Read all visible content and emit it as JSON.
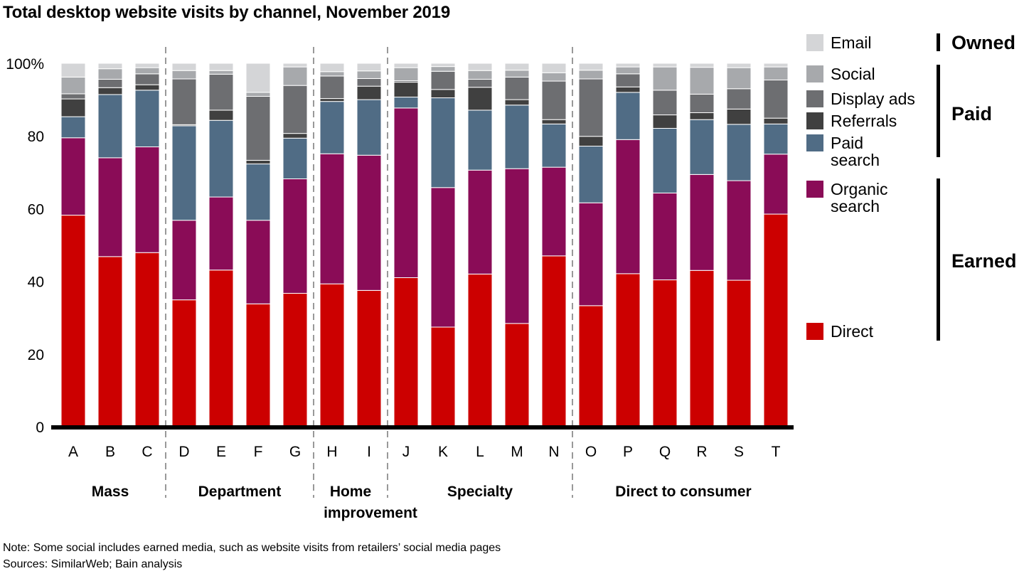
{
  "chart_data": {
    "type": "bar",
    "stacked": true,
    "title": "Total desktop website visits by channel, November 2019",
    "xlabel": "",
    "ylabel": "",
    "ylim": [
      0,
      100
    ],
    "yticks": [
      {
        "value": 0,
        "label": "0"
      },
      {
        "value": 20,
        "label": "20"
      },
      {
        "value": 40,
        "label": "40"
      },
      {
        "value": 60,
        "label": "60"
      },
      {
        "value": 80,
        "label": "80"
      },
      {
        "value": 100,
        "label": "100%"
      }
    ],
    "categories": [
      "A",
      "B",
      "C",
      "D",
      "E",
      "F",
      "G",
      "H",
      "I",
      "J",
      "K",
      "L",
      "M",
      "N",
      "O",
      "P",
      "Q",
      "R",
      "S",
      "T"
    ],
    "category_groups": [
      {
        "name": "Mass",
        "members": [
          "A",
          "B",
          "C"
        ]
      },
      {
        "name": "Department",
        "members": [
          "D",
          "E",
          "F",
          "G"
        ]
      },
      {
        "name": "Home improvement",
        "members": [
          "H",
          "I"
        ]
      },
      {
        "name": "Specialty",
        "members": [
          "J",
          "K",
          "L",
          "M",
          "N"
        ]
      },
      {
        "name": "Direct to consumer",
        "members": [
          "O",
          "P",
          "Q",
          "R",
          "S",
          "T"
        ]
      }
    ],
    "series": [
      {
        "name": "Direct",
        "color": "#cc0000",
        "values": [
          58.2,
          46.8,
          47.9,
          34.9,
          43.1,
          33.8,
          36.7,
          39.3,
          37.5,
          41.0,
          27.4,
          42.0,
          28.4,
          47.0,
          33.3,
          42.1,
          40.4,
          43.0,
          40.3,
          58.5
        ]
      },
      {
        "name": "Organic search",
        "color": "#8a0c57",
        "values": [
          21.3,
          27.2,
          29.1,
          21.9,
          20.1,
          23.0,
          31.5,
          35.8,
          37.2,
          46.7,
          38.4,
          28.6,
          42.6,
          24.4,
          28.3,
          36.9,
          23.9,
          26.4,
          27.4,
          16.5
        ]
      },
      {
        "name": "Paid search",
        "color": "#506c85",
        "values": [
          5.8,
          17.4,
          15.6,
          26.0,
          21.1,
          15.5,
          11.2,
          14.4,
          15.3,
          3.0,
          24.7,
          16.5,
          17.5,
          11.9,
          15.6,
          13.0,
          17.8,
          15.1,
          15.5,
          8.3
        ]
      },
      {
        "name": "Referrals",
        "color": "#404040",
        "values": [
          4.9,
          1.9,
          1.5,
          0.3,
          2.8,
          1.0,
          1.3,
          0.8,
          3.7,
          4.1,
          2.3,
          6.3,
          1.5,
          1.2,
          2.7,
          1.5,
          3.7,
          1.9,
          4.2,
          1.6
        ]
      },
      {
        "name": "Display ads",
        "color": "#6d6e71",
        "values": [
          1.4,
          2.3,
          3.0,
          12.6,
          9.9,
          17.6,
          13.2,
          6.2,
          2.1,
          0.4,
          5.0,
          2.2,
          6.2,
          10.6,
          15.8,
          3.6,
          6.8,
          5.1,
          5.6,
          10.5
        ]
      },
      {
        "name": "Social",
        "color": "#a7a9ac",
        "values": [
          4.6,
          2.9,
          1.7,
          2.3,
          1.0,
          1.1,
          5.1,
          1.2,
          2.1,
          3.6,
          1.3,
          2.4,
          1.9,
          2.3,
          2.4,
          1.9,
          6.4,
          7.4,
          5.8,
          3.6
        ]
      },
      {
        "name": "Email",
        "color": "#d4d5d7",
        "values": [
          3.8,
          1.5,
          1.2,
          2.0,
          2.0,
          8.0,
          1.0,
          2.3,
          2.1,
          1.2,
          0.9,
          2.0,
          1.9,
          2.6,
          1.9,
          1.0,
          1.0,
          1.1,
          1.2,
          1.0
        ]
      }
    ],
    "legend": {
      "placement": "right",
      "order": [
        {
          "label": "Email",
          "series": "Email"
        },
        {
          "label": "Social",
          "series": "Social"
        },
        {
          "label": "Display ads",
          "series": "Display ads"
        },
        {
          "label": "Referrals",
          "series": "Referrals"
        },
        {
          "label": "Paid search",
          "series": "Paid search"
        },
        {
          "label": "Organic search",
          "series": "Organic search"
        },
        {
          "label": "Direct",
          "series": "Direct"
        }
      ],
      "brackets": [
        {
          "label": "Owned",
          "series": [
            "Email"
          ]
        },
        {
          "label": "Paid",
          "series": [
            "Social",
            "Display ads",
            "Referrals",
            "Paid search"
          ]
        },
        {
          "label": "Earned",
          "series": [
            "Organic search",
            "Direct"
          ]
        }
      ]
    },
    "grid": false
  },
  "notes": {
    "note": "Note: Some social includes earned media, such as website visits from retailers’ social media pages",
    "sources": "Sources: SimilarWeb; Bain analysis"
  }
}
